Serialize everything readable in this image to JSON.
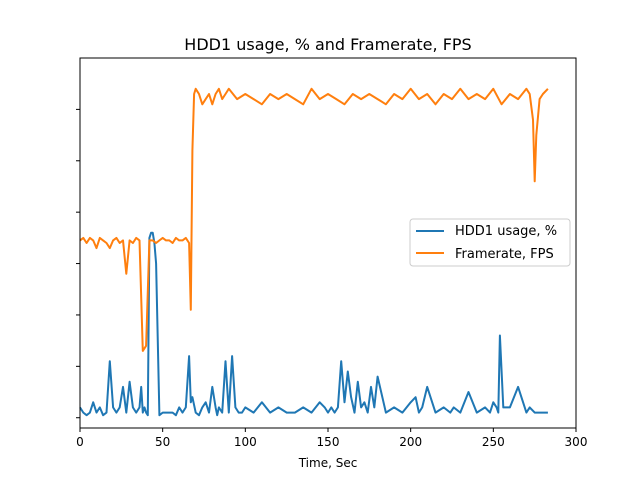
{
  "chart_data": {
    "type": "line",
    "title": "HDD1 usage, % and Framerate, FPS",
    "xlabel": "Time, Sec",
    "ylabel": "",
    "xlim": [
      0,
      300
    ],
    "ylim": [
      -2,
      70
    ],
    "x_ticks": [
      0,
      50,
      100,
      150,
      200,
      250,
      300
    ],
    "y_ticks": [
      0,
      10,
      20,
      30,
      40,
      50,
      60
    ],
    "y_tick_labels_visible": false,
    "grid": false,
    "legend_position": "right",
    "series": [
      {
        "name": "HDD1 usage, %",
        "color": "#1f77b4",
        "x": [
          0,
          2,
          4,
          6,
          8,
          10,
          12,
          14,
          16,
          18,
          20,
          22,
          24,
          26,
          28,
          30,
          32,
          34,
          36,
          37,
          38,
          39,
          40,
          41,
          42,
          43,
          44,
          45,
          46,
          48,
          50,
          52,
          54,
          56,
          58,
          60,
          62,
          64,
          66,
          67,
          68,
          70,
          72,
          74,
          76,
          78,
          80,
          82,
          83,
          84,
          86,
          88,
          90,
          92,
          94,
          96,
          98,
          100,
          105,
          110,
          115,
          120,
          125,
          130,
          135,
          140,
          145,
          148,
          150,
          152,
          154,
          156,
          158,
          160,
          162,
          164,
          166,
          168,
          170,
          172,
          174,
          176,
          178,
          180,
          185,
          190,
          195,
          200,
          203,
          205,
          207,
          210,
          215,
          220,
          224,
          226,
          230,
          235,
          240,
          245,
          248,
          250,
          252,
          253,
          254,
          256,
          260,
          265,
          270,
          272,
          275,
          280,
          283
        ],
        "values": [
          2,
          1,
          0.5,
          1,
          3,
          1,
          2,
          0.5,
          1,
          11,
          2,
          1,
          2,
          6,
          1,
          7,
          2,
          1,
          2,
          6,
          1,
          2,
          1,
          0.5,
          35,
          36,
          36,
          34,
          30,
          0.5,
          1,
          1,
          1,
          1,
          0.5,
          2,
          1,
          2,
          12,
          3,
          4,
          1,
          0.5,
          2,
          3,
          1,
          6,
          2,
          0.5,
          2,
          1,
          11,
          1,
          12,
          2,
          1,
          1,
          2,
          1,
          3,
          1,
          2,
          1,
          1,
          2,
          1,
          3,
          2,
          1,
          2,
          1,
          2,
          11,
          3,
          9,
          4,
          1,
          7,
          2,
          3,
          1,
          6,
          2,
          8,
          1,
          2,
          1,
          3,
          4,
          1,
          2,
          6,
          1,
          2,
          1,
          2,
          1,
          5,
          1,
          2,
          1,
          3,
          2,
          1,
          16,
          2,
          2,
          6,
          1,
          2,
          1,
          1,
          1
        ]
      },
      {
        "name": "Framerate, FPS",
        "color": "#ff7f0e",
        "x": [
          0,
          2,
          4,
          6,
          8,
          10,
          12,
          14,
          16,
          18,
          20,
          22,
          24,
          26,
          28,
          30,
          32,
          34,
          36,
          38,
          40,
          42,
          44,
          46,
          48,
          50,
          52,
          54,
          56,
          58,
          60,
          62,
          64,
          66,
          67,
          68,
          69,
          70,
          72,
          74,
          76,
          78,
          80,
          82,
          84,
          86,
          88,
          90,
          95,
          100,
          105,
          110,
          115,
          120,
          125,
          130,
          135,
          140,
          145,
          150,
          155,
          160,
          165,
          170,
          175,
          180,
          185,
          190,
          195,
          200,
          205,
          210,
          215,
          220,
          225,
          230,
          235,
          240,
          245,
          250,
          255,
          260,
          265,
          270,
          272,
          274,
          275,
          276,
          278,
          280,
          283
        ],
        "values": [
          34.5,
          35,
          34,
          35,
          34.5,
          33,
          35,
          34.5,
          34,
          33,
          34.5,
          35,
          34,
          34.5,
          28,
          34.5,
          34,
          35,
          34.5,
          13,
          14,
          34.5,
          34.5,
          34,
          34.5,
          35,
          34.5,
          34.5,
          34,
          35,
          34.5,
          34.5,
          35,
          34,
          21,
          52,
          63,
          64,
          63,
          61,
          62,
          63,
          61,
          63,
          64,
          62,
          63,
          64,
          62,
          63,
          62,
          61,
          63,
          62,
          63,
          62,
          61,
          64,
          62,
          63,
          62,
          61,
          63,
          62,
          63,
          62,
          61,
          63,
          62,
          64,
          62,
          63,
          61,
          63,
          62,
          64,
          62,
          63,
          62,
          64,
          61,
          63,
          62,
          64,
          63,
          58,
          46,
          55,
          62,
          63,
          64
        ]
      }
    ]
  }
}
